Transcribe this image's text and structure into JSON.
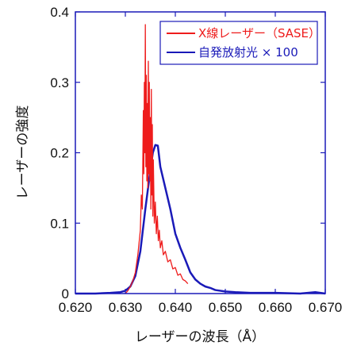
{
  "chart_data": {
    "type": "line",
    "xlabel": "レーザーの波長（Å）",
    "ylabel": "レーザーの強度",
    "xlim": [
      0.62,
      0.67
    ],
    "ylim": [
      0,
      0.4
    ],
    "x_ticks": [
      "0.620",
      "0.630",
      "0.640",
      "0.650",
      "0.660",
      "0.670"
    ],
    "y_ticks": [
      "0",
      "0.1",
      "0.2",
      "0.3",
      "0.4"
    ],
    "grid": false,
    "legend_position": "top-right",
    "series": [
      {
        "name": "X線レーザー（SASE）",
        "color": "#ee1c1c",
        "points": [
          [
            0.63,
            0.0
          ],
          [
            0.6305,
            0.004
          ],
          [
            0.631,
            0.01
          ],
          [
            0.6315,
            0.018
          ],
          [
            0.632,
            0.03
          ],
          [
            0.6325,
            0.055
          ],
          [
            0.633,
            0.09
          ],
          [
            0.6332,
            0.14
          ],
          [
            0.6334,
            0.12
          ],
          [
            0.6336,
            0.26
          ],
          [
            0.6337,
            0.17
          ],
          [
            0.6338,
            0.3
          ],
          [
            0.6339,
            0.2
          ],
          [
            0.634,
            0.382
          ],
          [
            0.6341,
            0.18
          ],
          [
            0.6342,
            0.31
          ],
          [
            0.6343,
            0.16
          ],
          [
            0.6344,
            0.27
          ],
          [
            0.6345,
            0.15
          ],
          [
            0.6346,
            0.33
          ],
          [
            0.6347,
            0.17
          ],
          [
            0.6348,
            0.3
          ],
          [
            0.6349,
            0.16
          ],
          [
            0.635,
            0.25
          ],
          [
            0.6351,
            0.12
          ],
          [
            0.6352,
            0.29
          ],
          [
            0.6353,
            0.14
          ],
          [
            0.6354,
            0.24
          ],
          [
            0.6355,
            0.11
          ],
          [
            0.6356,
            0.19
          ],
          [
            0.6358,
            0.1
          ],
          [
            0.636,
            0.13
          ],
          [
            0.6362,
            0.085
          ],
          [
            0.6364,
            0.11
          ],
          [
            0.6366,
            0.075
          ],
          [
            0.6368,
            0.09
          ],
          [
            0.637,
            0.065
          ],
          [
            0.6373,
            0.075
          ],
          [
            0.6376,
            0.055
          ],
          [
            0.638,
            0.06
          ],
          [
            0.6385,
            0.045
          ],
          [
            0.639,
            0.048
          ],
          [
            0.6395,
            0.035
          ],
          [
            0.64,
            0.037
          ],
          [
            0.6405,
            0.026
          ],
          [
            0.641,
            0.028
          ],
          [
            0.6415,
            0.02
          ],
          [
            0.642,
            0.018
          ],
          [
            0.6425,
            0.014
          ]
        ]
      },
      {
        "name": "自発放射光 × 100",
        "color": "#1a1ab8",
        "points": [
          [
            0.62,
            0.0
          ],
          [
            0.624,
            0.0
          ],
          [
            0.627,
            0.001
          ],
          [
            0.629,
            0.002
          ],
          [
            0.63,
            0.004
          ],
          [
            0.631,
            0.01
          ],
          [
            0.632,
            0.025
          ],
          [
            0.633,
            0.06
          ],
          [
            0.634,
            0.12
          ],
          [
            0.635,
            0.175
          ],
          [
            0.6355,
            0.2
          ],
          [
            0.636,
            0.211
          ],
          [
            0.6365,
            0.21
          ],
          [
            0.637,
            0.18
          ],
          [
            0.638,
            0.15
          ],
          [
            0.639,
            0.12
          ],
          [
            0.64,
            0.085
          ],
          [
            0.641,
            0.065
          ],
          [
            0.642,
            0.048
          ],
          [
            0.643,
            0.03
          ],
          [
            0.644,
            0.02
          ],
          [
            0.645,
            0.014
          ],
          [
            0.646,
            0.01
          ],
          [
            0.647,
            0.008
          ],
          [
            0.648,
            0.005
          ],
          [
            0.65,
            0.003
          ],
          [
            0.652,
            0.002
          ],
          [
            0.655,
            0.001
          ],
          [
            0.66,
            0.001
          ],
          [
            0.665,
            0.0
          ],
          [
            0.668,
            0.002
          ],
          [
            0.67,
            0.0
          ]
        ]
      }
    ]
  }
}
